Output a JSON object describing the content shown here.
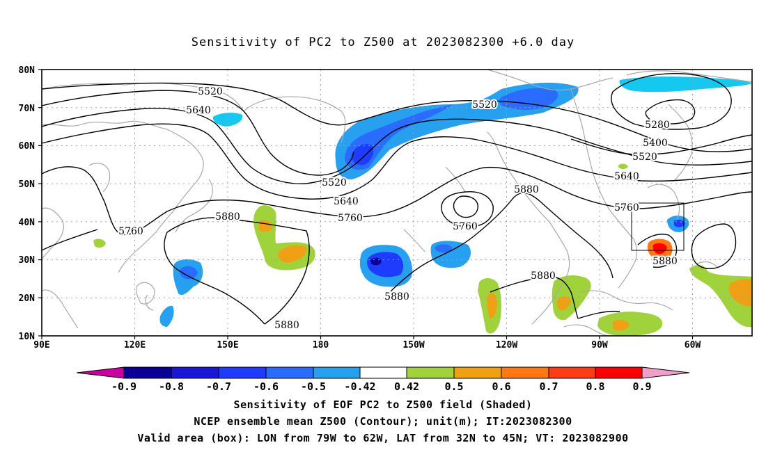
{
  "title": "Sensitivity of PC2 to Z500 at 2023082300 +6.0 day",
  "lat_labels": [
    "80N",
    "70N",
    "60N",
    "50N",
    "40N",
    "30N",
    "20N",
    "10N"
  ],
  "lon_labels": [
    "90E",
    "120E",
    "150E",
    "180",
    "150W",
    "120W",
    "90W",
    "60W"
  ],
  "contour_labels": [
    "5520",
    "5640",
    "5520",
    "5520",
    "5640",
    "5760",
    "5760",
    "5880",
    "5880",
    "5880",
    "5880",
    "5280",
    "5400",
    "5520",
    "5640",
    "5760",
    "5880",
    "5880",
    "5760"
  ],
  "colorbar": {
    "labels": [
      "-0.9",
      "-0.8",
      "-0.7",
      "-0.6",
      "-0.5",
      "-0.42",
      "0.42",
      "0.5",
      "0.6",
      "0.7",
      "0.8",
      "0.9"
    ],
    "colors": [
      "#0a0096",
      "#1a18d6",
      "#1e3cff",
      "#2a6cff",
      "#28a0f0",
      "#14c8f0",
      "#ffffff",
      "#a0d23c",
      "#f0a014",
      "#ff7814",
      "#ff3c14",
      "#ff0000"
    ],
    "end_low": "#c800a0",
    "end_high": "#f0a0c8"
  },
  "captions": [
    "Sensitivity of EOF PC2 to Z500 field (Shaded)",
    "NCEP ensemble mean Z500 (Contour); unit(m); IT:2023082300",
    "Valid area (box): LON from 79W to 62W, LAT from 32N to 45N; VT: 2023082900"
  ],
  "valid_box": {
    "lon_min": -79,
    "lon_max": -62,
    "lat_min": 32,
    "lat_max": 45
  },
  "colors": {
    "contour": "#000000",
    "coast": "#a8a8a8",
    "grid": "#a0a0a0"
  }
}
